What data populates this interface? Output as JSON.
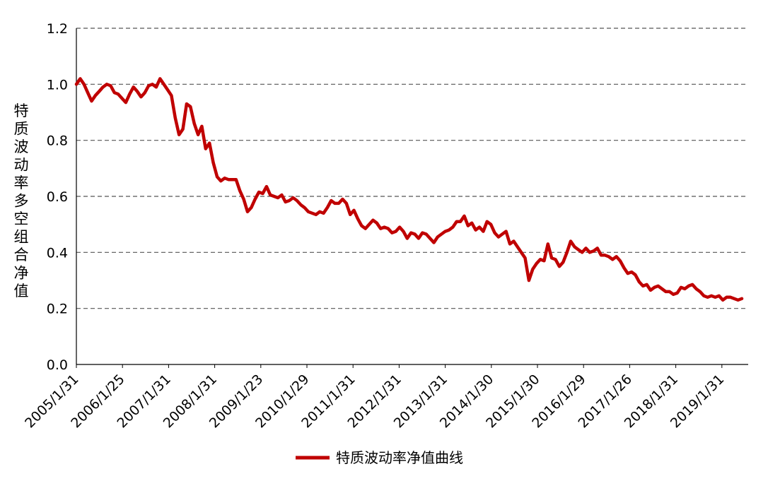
{
  "chart_data": {
    "type": "line",
    "ylabel": "特质波动率多空组合净值",
    "ylim": [
      0,
      1.2
    ],
    "yticks": [
      "0.0",
      "0.2",
      "0.4",
      "0.6",
      "0.8",
      "1.0",
      "1.2"
    ],
    "grid": true,
    "legend_position": "bottom",
    "x_ticks": [
      "2005/1/31",
      "2006/1/25",
      "2007/1/31",
      "2008/1/31",
      "2009/1/23",
      "2010/1/29",
      "2011/1/31",
      "2012/1/31",
      "2013/1/31",
      "2014/1/30",
      "2015/1/30",
      "2016/1/29",
      "2017/1/26",
      "2018/1/31",
      "2019/1/31"
    ],
    "series": [
      {
        "name": "特质波动率净值曲线",
        "color": "#c00000",
        "values": [
          1.0,
          1.02,
          1.0,
          0.97,
          0.94,
          0.96,
          0.975,
          0.99,
          1.0,
          0.995,
          0.97,
          0.965,
          0.95,
          0.935,
          0.965,
          0.99,
          0.975,
          0.955,
          0.97,
          0.995,
          1.0,
          0.99,
          1.02,
          1.0,
          0.98,
          0.96,
          0.88,
          0.82,
          0.84,
          0.93,
          0.92,
          0.86,
          0.82,
          0.85,
          0.77,
          0.79,
          0.72,
          0.67,
          0.655,
          0.665,
          0.66,
          0.66,
          0.66,
          0.62,
          0.59,
          0.545,
          0.56,
          0.59,
          0.615,
          0.61,
          0.635,
          0.605,
          0.6,
          0.595,
          0.605,
          0.58,
          0.585,
          0.595,
          0.585,
          0.57,
          0.56,
          0.545,
          0.54,
          0.535,
          0.545,
          0.54,
          0.56,
          0.585,
          0.575,
          0.575,
          0.59,
          0.575,
          0.535,
          0.55,
          0.52,
          0.495,
          0.485,
          0.5,
          0.515,
          0.505,
          0.485,
          0.49,
          0.485,
          0.47,
          0.475,
          0.49,
          0.475,
          0.45,
          0.47,
          0.465,
          0.45,
          0.47,
          0.465,
          0.45,
          0.435,
          0.455,
          0.465,
          0.475,
          0.48,
          0.49,
          0.51,
          0.51,
          0.53,
          0.495,
          0.505,
          0.48,
          0.49,
          0.475,
          0.51,
          0.5,
          0.47,
          0.455,
          0.465,
          0.475,
          0.43,
          0.44,
          0.42,
          0.4,
          0.38,
          0.3,
          0.34,
          0.36,
          0.375,
          0.37,
          0.43,
          0.38,
          0.375,
          0.35,
          0.365,
          0.4,
          0.44,
          0.42,
          0.41,
          0.4,
          0.415,
          0.4,
          0.405,
          0.415,
          0.39,
          0.39,
          0.385,
          0.375,
          0.385,
          0.37,
          0.345,
          0.325,
          0.33,
          0.32,
          0.295,
          0.28,
          0.285,
          0.265,
          0.275,
          0.28,
          0.27,
          0.26,
          0.26,
          0.25,
          0.255,
          0.275,
          0.27,
          0.28,
          0.285,
          0.27,
          0.26,
          0.245,
          0.24,
          0.245,
          0.24,
          0.245,
          0.23,
          0.24,
          0.24,
          0.235,
          0.23,
          0.235
        ]
      }
    ]
  }
}
